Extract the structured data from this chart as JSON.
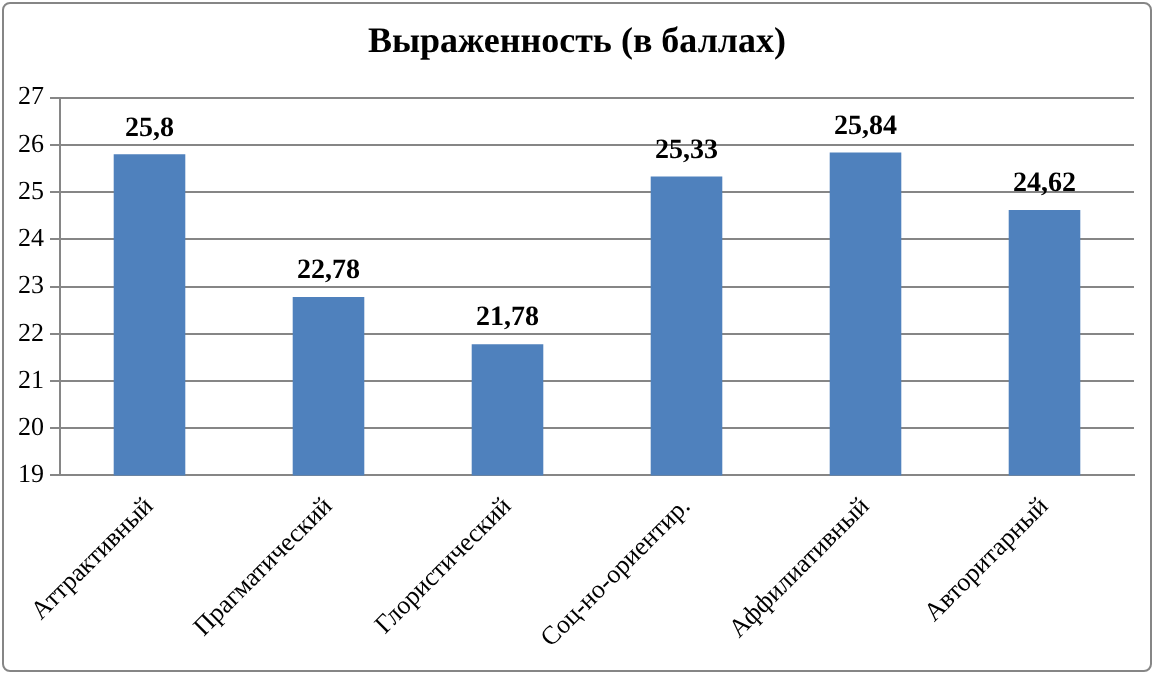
{
  "chart_data": {
    "type": "bar",
    "title": "Выраженность (в баллах)",
    "categories": [
      "Аттрактивный",
      "Прагматический",
      "Глористический",
      "Соц-но-ориентир.",
      "Аффилиативный",
      "Авторитарный"
    ],
    "values": [
      25.8,
      22.78,
      21.78,
      25.33,
      25.84,
      24.62
    ],
    "value_labels": [
      "25,8",
      "22,78",
      "21,78",
      "25,33",
      "25,84",
      "24,62"
    ],
    "color": "#4f81bd",
    "ylim": [
      19,
      27
    ],
    "yticks": [
      19,
      20,
      21,
      22,
      23,
      24,
      25,
      26,
      27
    ],
    "grid": "y",
    "legend": false
  }
}
